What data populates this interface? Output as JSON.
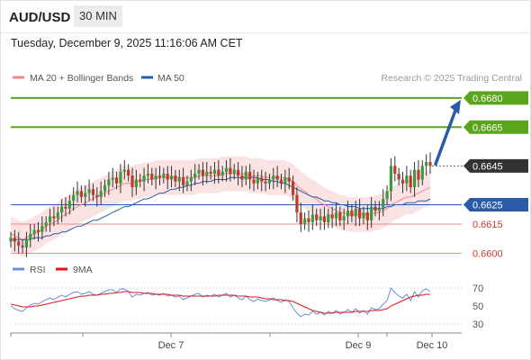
{
  "header": {
    "symbol": "AUD/USD",
    "timeframe": "30 MIN",
    "datetime": "Tuesday, December 9, 2025 11:16:06 AM CET"
  },
  "legend": {
    "ma20_label": "MA 20 + Bollinger Bands",
    "ma50_label": "MA 50",
    "ma20_color": "#f08a8a",
    "ma50_color": "#2a5ba8",
    "credit": "Research © 2025 Trading Central"
  },
  "rsi_legend": {
    "rsi_label": "RSI",
    "ma_label": "9MA",
    "rsi_color": "#6a8fd8",
    "ma_color": "#e0161e"
  },
  "colors": {
    "up": "#3b9a3b",
    "down": "#c0392b",
    "resistance": "#5aa51c",
    "support": "#ef8a8a",
    "pivot": "#2a5ba8",
    "arrow": "#2a5ba8",
    "current": "#333333"
  },
  "chart_data": [
    {
      "type": "candlestick",
      "ylim": [
        0.6596,
        0.6686
      ],
      "x_ticks": [
        "Dec 7",
        "Dec 9",
        "Dec 10"
      ],
      "levels": [
        {
          "value": 0.668,
          "label": "0.6680",
          "kind": "resistance"
        },
        {
          "value": 0.6665,
          "label": "0.6665",
          "kind": "resistance"
        },
        {
          "value": 0.6645,
          "label": "0.6645",
          "kind": "current"
        },
        {
          "value": 0.6625,
          "label": "0.6625",
          "kind": "pivot"
        },
        {
          "value": 0.6615,
          "label": "0.6615",
          "kind": "support"
        },
        {
          "value": 0.66,
          "label": "0.6600",
          "kind": "support"
        }
      ],
      "closes": [
        0.6608,
        0.6606,
        0.6604,
        0.6603,
        0.6607,
        0.661,
        0.6612,
        0.6611,
        0.6614,
        0.6616,
        0.6619,
        0.6618,
        0.6621,
        0.6624,
        0.6623,
        0.6627,
        0.663,
        0.6632,
        0.6629,
        0.6631,
        0.6633,
        0.663,
        0.6629,
        0.6632,
        0.6635,
        0.6638,
        0.6639,
        0.6636,
        0.6642,
        0.6643,
        0.664,
        0.6634,
        0.6638,
        0.6637,
        0.664,
        0.6641,
        0.6638,
        0.664,
        0.6639,
        0.6641,
        0.6638,
        0.664,
        0.6637,
        0.6639,
        0.6635,
        0.6637,
        0.6639,
        0.6641,
        0.6643,
        0.664,
        0.6642,
        0.6641,
        0.6643,
        0.664,
        0.6642,
        0.6644,
        0.6641,
        0.6643,
        0.664,
        0.6638,
        0.6642,
        0.6638,
        0.6636,
        0.6639,
        0.6637,
        0.6636,
        0.6638,
        0.664,
        0.6638,
        0.6636,
        0.6639,
        0.6637,
        0.663,
        0.6621,
        0.6615,
        0.6618,
        0.6616,
        0.662,
        0.6617,
        0.6619,
        0.6616,
        0.662,
        0.6618,
        0.6621,
        0.6617,
        0.6619,
        0.6622,
        0.6619,
        0.6623,
        0.6618,
        0.6621,
        0.6617,
        0.6624,
        0.6622,
        0.6623,
        0.6628,
        0.6632,
        0.6645,
        0.6641,
        0.6638,
        0.6636,
        0.664,
        0.6634,
        0.6643,
        0.6638,
        0.6645,
        0.6647,
        0.6645
      ],
      "ma20": [
        0.661,
        0.6609,
        0.6608,
        0.6607,
        0.6608,
        0.6609,
        0.661,
        0.6611,
        0.6612,
        0.6614,
        0.6615,
        0.6616,
        0.6617,
        0.6619,
        0.662,
        0.6621,
        0.6623,
        0.6624,
        0.6625,
        0.6626,
        0.6627,
        0.6628,
        0.6629,
        0.663,
        0.6631,
        0.6632,
        0.6633,
        0.6634,
        0.6635,
        0.6636,
        0.6636,
        0.6636,
        0.6637,
        0.6637,
        0.6638,
        0.6638,
        0.6638,
        0.6639,
        0.6639,
        0.6639,
        0.6639,
        0.6639,
        0.6639,
        0.6639,
        0.6639,
        0.6639,
        0.6639,
        0.6639,
        0.664,
        0.664,
        0.664,
        0.664,
        0.664,
        0.664,
        0.6641,
        0.6641,
        0.6641,
        0.6641,
        0.6641,
        0.6641,
        0.6641,
        0.664,
        0.664,
        0.664,
        0.664,
        0.6639,
        0.6639,
        0.6639,
        0.6639,
        0.6639,
        0.6639,
        0.6638,
        0.6637,
        0.6635,
        0.6633,
        0.6632,
        0.663,
        0.6629,
        0.6628,
        0.6626,
        0.6625,
        0.6624,
        0.6623,
        0.6622,
        0.6621,
        0.6621,
        0.662,
        0.662,
        0.662,
        0.662,
        0.662,
        0.662,
        0.662,
        0.6621,
        0.6621,
        0.6622,
        0.6623,
        0.6625,
        0.6626,
        0.6627,
        0.6628,
        0.6629,
        0.6629,
        0.663,
        0.6631,
        0.6632,
        0.6633,
        0.6634
      ],
      "ma50": [
        0.6607,
        0.6607,
        0.6607,
        0.6607,
        0.6607,
        0.6607,
        0.6608,
        0.6608,
        0.6608,
        0.6609,
        0.6609,
        0.661,
        0.661,
        0.6611,
        0.6611,
        0.6612,
        0.6613,
        0.6614,
        0.6614,
        0.6615,
        0.6616,
        0.6617,
        0.6617,
        0.6618,
        0.6619,
        0.662,
        0.6621,
        0.6622,
        0.6623,
        0.6624,
        0.6624,
        0.6625,
        0.6626,
        0.6627,
        0.6628,
        0.6628,
        0.6629,
        0.663,
        0.6631,
        0.6631,
        0.6632,
        0.6633,
        0.6633,
        0.6634,
        0.6634,
        0.6635,
        0.6635,
        0.6636,
        0.6636,
        0.6637,
        0.6637,
        0.6637,
        0.6638,
        0.6638,
        0.6638,
        0.6638,
        0.6639,
        0.6639,
        0.6639,
        0.6639,
        0.6639,
        0.6639,
        0.6639,
        0.6639,
        0.6638,
        0.6638,
        0.6638,
        0.6637,
        0.6637,
        0.6636,
        0.6636,
        0.6635,
        0.6634,
        0.6633,
        0.6632,
        0.6631,
        0.663,
        0.6629,
        0.6629,
        0.6628,
        0.6627,
        0.6627,
        0.6626,
        0.6626,
        0.6625,
        0.6625,
        0.6624,
        0.6624,
        0.6624,
        0.6623,
        0.6623,
        0.6623,
        0.6623,
        0.6623,
        0.6623,
        0.6623,
        0.6624,
        0.6624,
        0.6625,
        0.6625,
        0.6625,
        0.6626,
        0.6626,
        0.6626,
        0.6627,
        0.6627,
        0.6627,
        0.6628
      ],
      "bb_width": 0.0009
    },
    {
      "type": "line",
      "ylim": [
        20,
        80
      ],
      "y_ticks": [
        30,
        50,
        70
      ],
      "series": [
        {
          "name": "RSI",
          "values": [
            50,
            47,
            45,
            44,
            48,
            51,
            53,
            52,
            55,
            57,
            59,
            57,
            60,
            62,
            60,
            63,
            65,
            66,
            63,
            64,
            66,
            63,
            62,
            64,
            66,
            68,
            68,
            65,
            69,
            69,
            66,
            60,
            63,
            62,
            64,
            65,
            62,
            63,
            62,
            64,
            61,
            62,
            60,
            61,
            57,
            59,
            61,
            63,
            64,
            60,
            62,
            61,
            63,
            60,
            62,
            64,
            60,
            62,
            59,
            57,
            61,
            57,
            55,
            58,
            56,
            55,
            57,
            59,
            56,
            54,
            57,
            55,
            48,
            42,
            38,
            41,
            40,
            44,
            41,
            43,
            40,
            44,
            42,
            45,
            41,
            43,
            46,
            43,
            47,
            42,
            45,
            41,
            48,
            46,
            47,
            52,
            56,
            70,
            65,
            61,
            59,
            63,
            56,
            66,
            60,
            67,
            69,
            66
          ]
        },
        {
          "name": "9MA",
          "values": [
            52,
            51,
            50,
            49,
            49,
            49,
            50,
            50,
            51,
            52,
            53,
            54,
            55,
            56,
            57,
            58,
            59,
            60,
            61,
            61,
            62,
            62,
            62,
            63,
            63,
            64,
            64,
            65,
            65,
            66,
            66,
            65,
            65,
            65,
            64,
            64,
            64,
            63,
            63,
            63,
            63,
            62,
            62,
            62,
            61,
            61,
            61,
            61,
            61,
            61,
            61,
            61,
            61,
            62,
            62,
            62,
            62,
            62,
            61,
            61,
            61,
            60,
            60,
            60,
            59,
            58,
            58,
            57,
            57,
            57,
            56,
            56,
            55,
            53,
            51,
            49,
            47,
            45,
            44,
            43,
            42,
            42,
            42,
            43,
            43,
            43,
            43,
            43,
            44,
            44,
            44,
            44,
            45,
            45,
            45,
            46,
            47,
            50,
            52,
            54,
            56,
            58,
            60,
            61,
            62,
            62,
            63,
            63
          ]
        }
      ]
    }
  ]
}
